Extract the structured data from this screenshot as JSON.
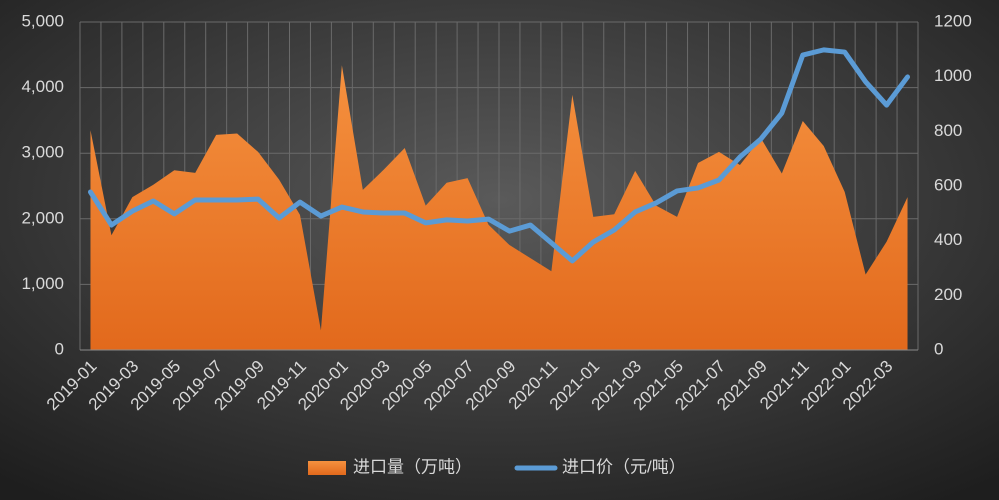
{
  "chart_data": {
    "type": "combo",
    "categories": [
      "2019-01",
      null,
      "2019-03",
      null,
      "2019-05",
      null,
      "2019-07",
      null,
      "2019-09",
      null,
      "2019-11",
      null,
      "2020-01",
      null,
      "2020-03",
      null,
      "2020-05",
      null,
      "2020-07",
      null,
      "2020-09",
      null,
      "2020-11",
      null,
      "2021-01",
      null,
      "2021-03",
      null,
      "2021-05",
      null,
      "2021-07",
      null,
      "2021-09",
      null,
      "2021-11",
      null,
      "2022-01",
      null,
      "2022-03",
      null
    ],
    "series": [
      {
        "name": "进口量（万吨）",
        "type": "area",
        "color": "#f07c2a",
        "values": [
          3350,
          1750,
          2330,
          2520,
          2740,
          2700,
          3280,
          3300,
          3020,
          2600,
          2060,
          300,
          4340,
          2440,
          2750,
          3080,
          2200,
          2550,
          2620,
          1910,
          1600,
          1400,
          1200,
          3890,
          2030,
          2070,
          2730,
          2200,
          2030,
          2850,
          3020,
          2820,
          3230,
          2690,
          3490,
          3110,
          2410,
          1150,
          1650,
          2330
        ]
      },
      {
        "name": "进口价（元/吨）",
        "type": "line",
        "color": "#5b9bd5",
        "axis": "y2",
        "values": [
          578,
          457,
          508,
          545,
          498,
          549,
          549,
          549,
          552,
          483,
          541,
          490,
          523,
          505,
          501,
          501,
          465,
          476,
          472,
          479,
          435,
          457,
          392,
          326,
          395,
          439,
          505,
          538,
          582,
          593,
          622,
          706,
          772,
          867,
          1079,
          1098,
          1090,
          981,
          896,
          999
        ]
      }
    ],
    "ylim": [
      0,
      5000
    ],
    "yticks": [
      0,
      {
        "value": 1000,
        "label": "1,000"
      },
      {
        "value": 2000,
        "label": "2,000"
      },
      {
        "value": 3000,
        "label": "3,000"
      },
      {
        "value": 4000,
        "label": "4,000"
      },
      {
        "value": 5000,
        "label": "5,000"
      }
    ],
    "y2lim": [
      0,
      1200
    ],
    "y2ticks": [
      0,
      200,
      400,
      600,
      800,
      1000,
      1200
    ],
    "grid": true,
    "legend": "bottom"
  }
}
